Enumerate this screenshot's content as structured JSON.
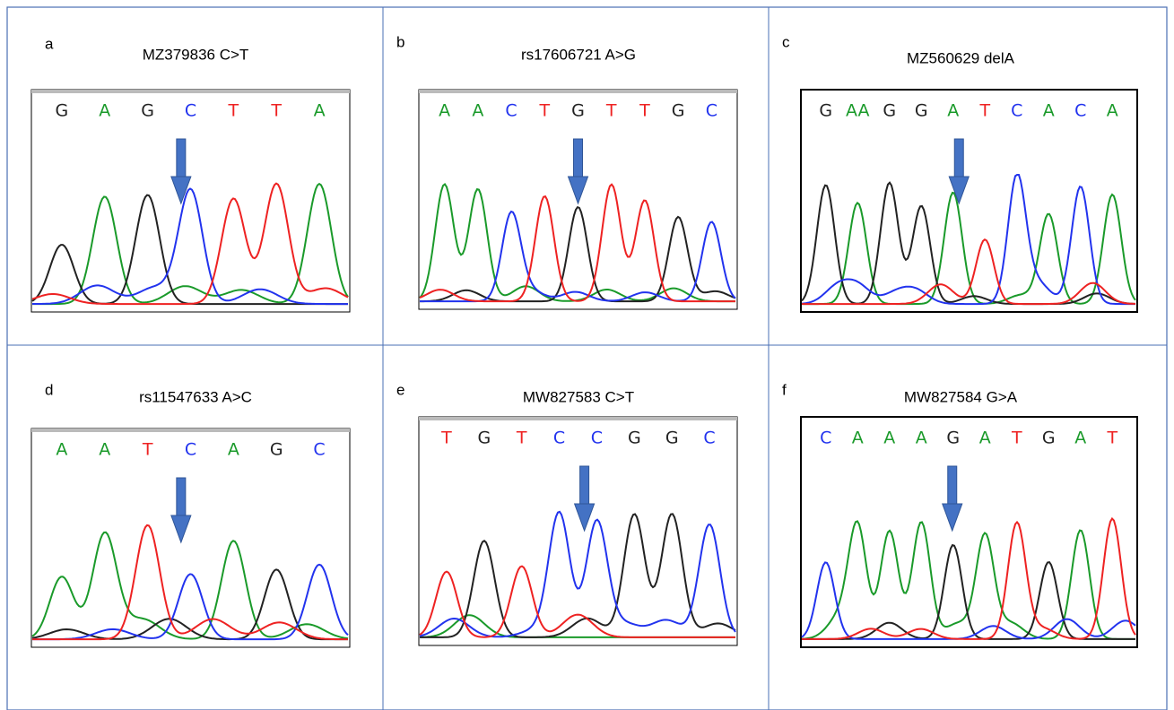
{
  "panels": [
    {
      "label": "a",
      "title": "MZ379836 C>T",
      "bases": [
        "G",
        "A",
        "G",
        "C",
        "T",
        "T",
        "A"
      ]
    },
    {
      "label": "b",
      "title": "rs17606721 A>G",
      "bases": [
        "A",
        "A",
        "C",
        "T",
        "G",
        "T",
        "T",
        "G",
        "C"
      ]
    },
    {
      "label": "c",
      "title": "MZ560629 delA",
      "bases": [
        "G",
        "AA",
        "G",
        "G",
        "A",
        "T",
        "C",
        "A",
        "C",
        "A"
      ]
    },
    {
      "label": "d",
      "title": "rs11547633 A>C",
      "bases": [
        "A",
        "A",
        "T",
        "C",
        "A",
        "G",
        "C"
      ]
    },
    {
      "label": "e",
      "title": "MW827583 C>T",
      "bases": [
        "T",
        "G",
        "T",
        "C",
        "C",
        "G",
        "G",
        "C"
      ]
    },
    {
      "label": "f",
      "title": "MW827584 G>A",
      "bases": [
        "C",
        "A",
        "A",
        "A",
        "G",
        "A",
        "T",
        "G",
        "A",
        "T"
      ]
    }
  ]
}
